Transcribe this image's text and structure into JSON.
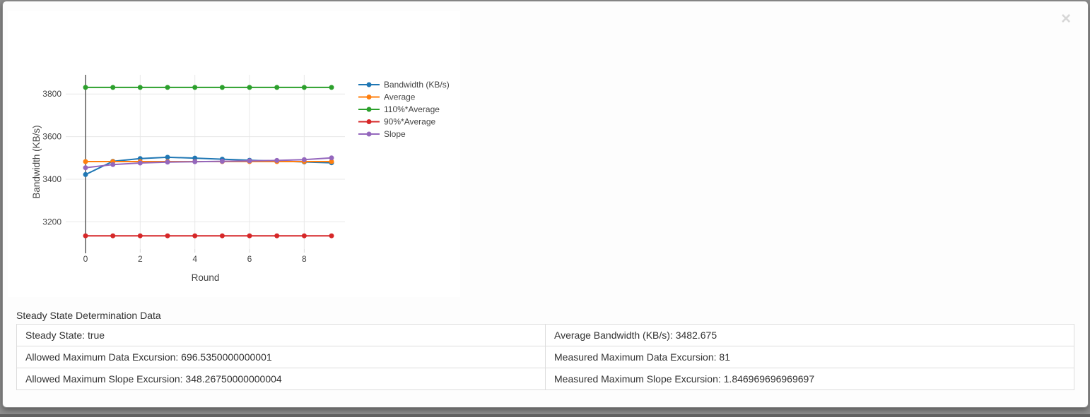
{
  "modal": {
    "close_label": "×"
  },
  "chart_data": {
    "type": "line",
    "x": [
      0,
      1,
      2,
      3,
      4,
      5,
      6,
      7,
      8,
      9
    ],
    "series": [
      {
        "name": "Bandwidth (KB/s)",
        "color": "#1f77b4",
        "values": [
          3422,
          3484,
          3497,
          3503,
          3499,
          3494,
          3489,
          3485,
          3481,
          3477
        ]
      },
      {
        "name": "Average",
        "color": "#ff7f0e",
        "values": [
          3482.675,
          3482.675,
          3482.675,
          3482.675,
          3482.675,
          3482.675,
          3482.675,
          3482.675,
          3482.675,
          3482.675
        ]
      },
      {
        "name": "110%*Average",
        "color": "#2ca02c",
        "values": [
          3830.9425,
          3830.9425,
          3830.9425,
          3830.9425,
          3830.9425,
          3830.9425,
          3830.9425,
          3830.9425,
          3830.9425,
          3830.9425
        ]
      },
      {
        "name": "90%*Average",
        "color": "#d62728",
        "values": [
          3134.4075,
          3134.4075,
          3134.4075,
          3134.4075,
          3134.4075,
          3134.4075,
          3134.4075,
          3134.4075,
          3134.4075,
          3134.4075
        ]
      },
      {
        "name": "Slope",
        "color": "#9467bd",
        "values": [
          3454,
          3469,
          3476,
          3480,
          3482,
          3484,
          3486,
          3488,
          3492,
          3500
        ]
      }
    ],
    "title": "",
    "xlabel": "Round",
    "ylabel": "Bandwidth (KB/s)",
    "x_ticks": [
      0,
      2,
      4,
      6,
      8
    ],
    "y_ticks": [
      3200,
      3400,
      3600,
      3800
    ],
    "xlim": [
      -0.45,
      9.55
    ],
    "ylim": [
      3067,
      3890
    ],
    "grid": true,
    "legend_position": "right",
    "grid_color": "#e8e8e8",
    "zeroline_color": "#444444"
  },
  "table": {
    "title": "Steady State Determination Data",
    "rows": [
      [
        "Steady State: true",
        "Average Bandwidth (KB/s): 3482.675"
      ],
      [
        "Allowed Maximum Data Excursion: 696.5350000000001",
        "Measured Maximum Data Excursion: 81"
      ],
      [
        "Allowed Maximum Slope Excursion: 348.26750000000004",
        "Measured Maximum Slope Excursion: 1.846969696969697"
      ]
    ]
  }
}
